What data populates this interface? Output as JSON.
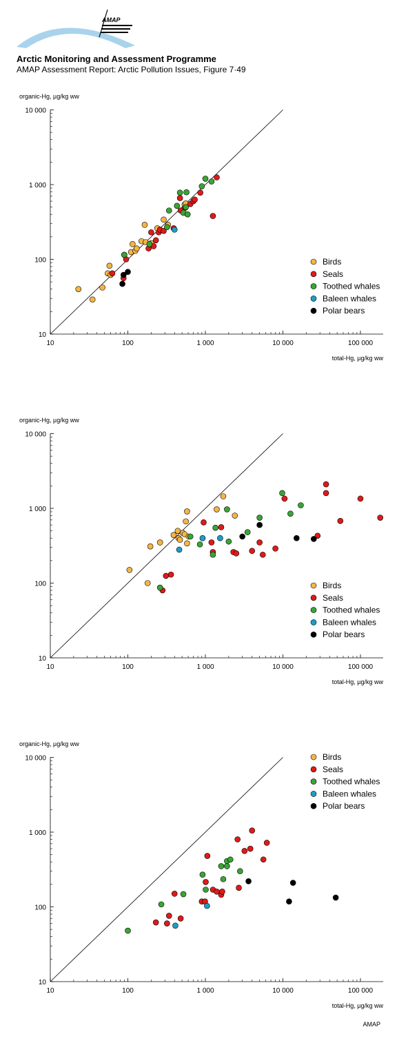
{
  "header": {
    "logo_text": "AMAP",
    "title": "Arctic Monitoring and Assessment Programme",
    "subtitle": "AMAP Assessment Report: Arctic Pollution Issues, Figure 7·49"
  },
  "footer": {
    "credit": "AMAP"
  },
  "legend_colors": {
    "Birds": "#f5b544",
    "Seals": "#e01a1a",
    "Toothed whales": "#3aa535",
    "Baleen whales": "#1aa0c8",
    "Polar bears": "#000000"
  },
  "chart_data": [
    {
      "type": "scatter",
      "xlabel": "total-Hg, µg/kg ww",
      "ylabel": "organic-Hg, µg/kg ww",
      "x_scale": "log",
      "y_scale": "log",
      "xlim": [
        10,
        200000
      ],
      "ylim": [
        10,
        10000
      ],
      "x_ticks": [
        "10",
        "100",
        "1 000",
        "10 000",
        "100 000"
      ],
      "y_ticks": [
        "10",
        "100",
        "1 000",
        "10 000"
      ],
      "reference_line": "1:1",
      "legend_position": "right",
      "series": [
        {
          "name": "Birds",
          "points": [
            [
              23,
              40
            ],
            [
              35,
              29
            ],
            [
              47,
              42
            ],
            [
              55,
              65
            ],
            [
              58,
              82
            ],
            [
              60,
              62
            ],
            [
              90,
              115
            ],
            [
              110,
              125
            ],
            [
              115,
              160
            ],
            [
              125,
              130
            ],
            [
              130,
              140
            ],
            [
              150,
              175
            ],
            [
              165,
              290
            ],
            [
              170,
              170
            ],
            [
              200,
              165
            ],
            [
              240,
              260
            ],
            [
              290,
              340
            ],
            [
              330,
              290
            ],
            [
              540,
              540
            ],
            [
              560,
              560
            ]
          ]
        },
        {
          "name": "Seals",
          "points": [
            [
              63,
              65
            ],
            [
              88,
              56
            ],
            [
              95,
              100
            ],
            [
              185,
              140
            ],
            [
              200,
              230
            ],
            [
              215,
              150
            ],
            [
              230,
              180
            ],
            [
              250,
              230
            ],
            [
              260,
              250
            ],
            [
              290,
              240
            ],
            [
              390,
              260
            ],
            [
              470,
              660
            ],
            [
              480,
              450
            ],
            [
              550,
              490
            ],
            [
              640,
              550
            ],
            [
              700,
              600
            ],
            [
              730,
              630
            ],
            [
              860,
              780
            ],
            [
              1250,
              380
            ],
            [
              1400,
              1250
            ]
          ]
        },
        {
          "name": "Toothed whales",
          "points": [
            [
              90,
              115
            ],
            [
              190,
              160
            ],
            [
              320,
              270
            ],
            [
              340,
              450
            ],
            [
              430,
              520
            ],
            [
              470,
              780
            ],
            [
              520,
              420
            ],
            [
              560,
              500
            ],
            [
              570,
              790
            ],
            [
              590,
              400
            ],
            [
              900,
              950
            ],
            [
              1000,
              1200
            ],
            [
              1200,
              1100
            ]
          ]
        },
        {
          "name": "Baleen whales",
          "points": [
            [
              400,
              250
            ]
          ]
        },
        {
          "name": "Polar bears",
          "points": [
            [
              85,
              47
            ],
            [
              88,
              62
            ],
            [
              100,
              68
            ]
          ]
        }
      ]
    },
    {
      "type": "scatter",
      "xlabel": "total-Hg, µg/kg ww",
      "ylabel": "organic-Hg, µg/kg ww",
      "x_scale": "log",
      "y_scale": "log",
      "xlim": [
        10,
        200000
      ],
      "ylim": [
        10,
        10000
      ],
      "x_ticks": [
        "10",
        "100",
        "1 000",
        "10 000",
        "100 000"
      ],
      "y_ticks": [
        "10",
        "100",
        "1 000",
        "10 000"
      ],
      "reference_line": "1:1",
      "legend_position": "right",
      "series": [
        {
          "name": "Birds",
          "points": [
            [
              105,
              150
            ],
            [
              180,
              100
            ],
            [
              195,
              310
            ],
            [
              260,
              350
            ],
            [
              390,
              440
            ],
            [
              440,
              500
            ],
            [
              450,
              400
            ],
            [
              470,
              380
            ],
            [
              510,
              470
            ],
            [
              540,
              450
            ],
            [
              560,
              670
            ],
            [
              580,
              910
            ],
            [
              580,
              340
            ],
            [
              610,
              420
            ],
            [
              1400,
              970
            ],
            [
              1700,
              1450
            ],
            [
              2400,
              800
            ]
          ]
        },
        {
          "name": "Seals",
          "points": [
            [
              280,
              80
            ],
            [
              310,
              125
            ],
            [
              360,
              130
            ],
            [
              950,
              650
            ],
            [
              1200,
              350
            ],
            [
              1250,
              260
            ],
            [
              1600,
              560
            ],
            [
              2300,
              260
            ],
            [
              2500,
              250
            ],
            [
              4000,
              270
            ],
            [
              5000,
              350
            ],
            [
              5500,
              240
            ],
            [
              8000,
              290
            ],
            [
              10500,
              1350
            ],
            [
              28000,
              430
            ],
            [
              36000,
              2100
            ],
            [
              36000,
              1600
            ],
            [
              55000,
              680
            ],
            [
              100000,
              1350
            ],
            [
              180000,
              750
            ]
          ]
        },
        {
          "name": "Toothed whales",
          "points": [
            [
              260,
              87
            ],
            [
              640,
              420
            ],
            [
              850,
              330
            ],
            [
              1250,
              240
            ],
            [
              1350,
              550
            ],
            [
              1900,
              970
            ],
            [
              2000,
              360
            ],
            [
              3500,
              480
            ],
            [
              5000,
              750
            ],
            [
              9800,
              1600
            ],
            [
              12500,
              850
            ],
            [
              17000,
              1100
            ]
          ]
        },
        {
          "name": "Baleen whales",
          "points": [
            [
              460,
              280
            ],
            [
              920,
              400
            ],
            [
              1550,
              400
            ]
          ]
        },
        {
          "name": "Polar bears",
          "points": [
            [
              3000,
              420
            ],
            [
              5000,
              600
            ],
            [
              15000,
              400
            ],
            [
              25000,
              390
            ]
          ]
        }
      ]
    },
    {
      "type": "scatter",
      "xlabel": "total-Hg, µg/kg ww",
      "ylabel": "organic-Hg, µg/kg ww",
      "x_scale": "log",
      "y_scale": "log",
      "xlim": [
        10,
        200000
      ],
      "ylim": [
        10,
        10000
      ],
      "x_ticks": [
        "10",
        "100",
        "1 000",
        "10 000",
        "100 000"
      ],
      "y_ticks": [
        "10",
        "100",
        "1 000",
        "10 000"
      ],
      "reference_line": "1:1",
      "legend_position": "top-right",
      "series": [
        {
          "name": "Birds",
          "points": []
        },
        {
          "name": "Seals",
          "points": [
            [
              230,
              62
            ],
            [
              320,
              60
            ],
            [
              340,
              76
            ],
            [
              400,
              150
            ],
            [
              480,
              70
            ],
            [
              900,
              118
            ],
            [
              990,
              118
            ],
            [
              1010,
              215
            ],
            [
              1060,
              480
            ],
            [
              1250,
              170
            ],
            [
              1400,
              160
            ],
            [
              1600,
              145
            ],
            [
              1650,
              160
            ],
            [
              2600,
              800
            ],
            [
              2700,
              180
            ],
            [
              3200,
              560
            ],
            [
              3800,
              600
            ],
            [
              4000,
              1050
            ],
            [
              5600,
              430
            ],
            [
              6200,
              720
            ]
          ]
        },
        {
          "name": "Toothed whales",
          "points": [
            [
              100,
              48
            ],
            [
              270,
              108
            ],
            [
              520,
              148
            ],
            [
              920,
              270
            ],
            [
              1010,
              170
            ],
            [
              1600,
              350
            ],
            [
              1700,
              235
            ],
            [
              1900,
              410
            ],
            [
              2100,
              430
            ],
            [
              2800,
              300
            ],
            [
              1900,
              350
            ]
          ]
        },
        {
          "name": "Baleen whales",
          "points": [
            [
              410,
              56
            ],
            [
              1050,
              103
            ]
          ]
        },
        {
          "name": "Polar bears",
          "points": [
            [
              3600,
              220
            ],
            [
              12000,
              118
            ],
            [
              13500,
              210
            ],
            [
              48000,
              133
            ]
          ]
        }
      ]
    }
  ]
}
